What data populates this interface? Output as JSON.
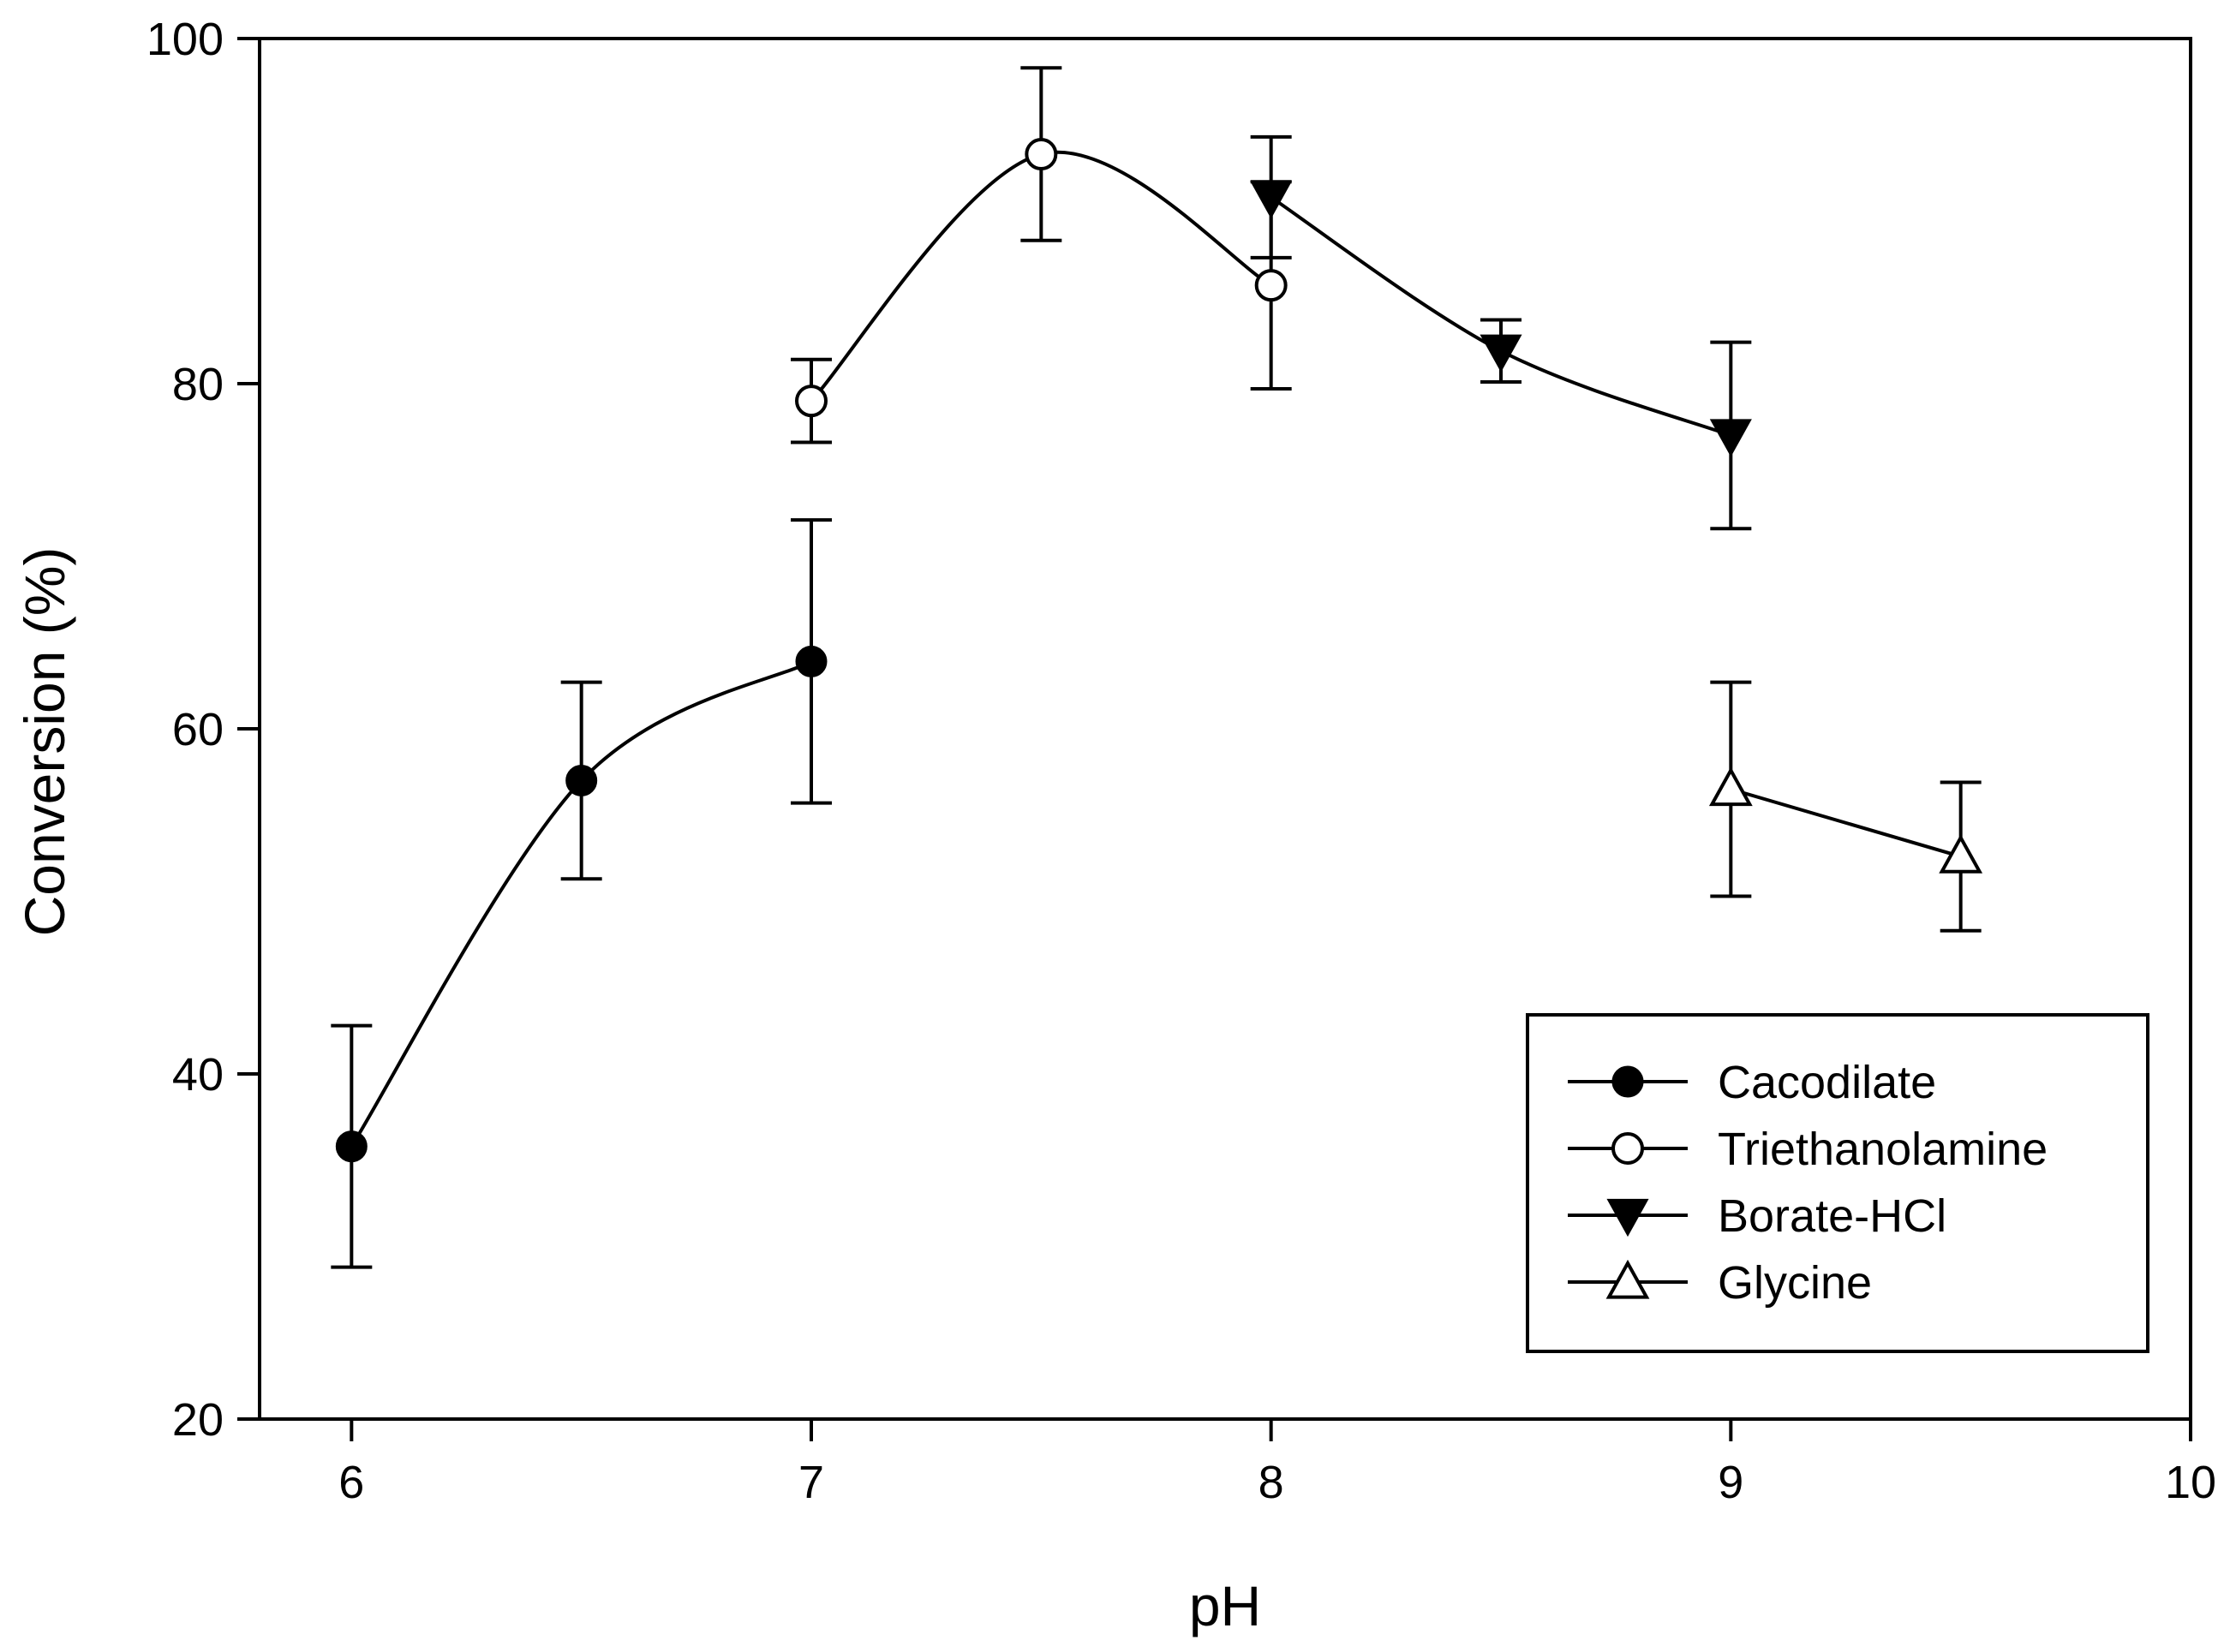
{
  "chart_data": {
    "type": "line",
    "title": "",
    "xlabel": "pH",
    "ylabel": "Conversion (%)",
    "xlim": [
      5.8,
      10
    ],
    "ylim": [
      20,
      100
    ],
    "xticks": [
      6,
      7,
      8,
      9,
      10
    ],
    "yticks": [
      20,
      40,
      60,
      80,
      100
    ],
    "grid": false,
    "legend_position": "bottom-right",
    "series": [
      {
        "name": "Cacodilate",
        "marker": "filled-circle",
        "x": [
          6,
          6.5,
          7
        ],
        "y": [
          35.8,
          57.0,
          63.9
        ],
        "err": [
          7.0,
          5.7,
          8.2
        ]
      },
      {
        "name": "Triethanolamine",
        "marker": "open-circle",
        "x": [
          7,
          7.5,
          8
        ],
        "y": [
          79.0,
          93.3,
          85.7
        ],
        "err": [
          2.4,
          5.0,
          6.0
        ]
      },
      {
        "name": "Borate-HCl",
        "marker": "filled-triangle-down",
        "x": [
          8,
          8.5,
          9
        ],
        "y": [
          90.8,
          81.9,
          77.0
        ],
        "err": [
          3.5,
          1.8,
          5.4
        ]
      },
      {
        "name": "Glycine",
        "marker": "open-triangle-up",
        "x": [
          9,
          9.5
        ],
        "y": [
          56.5,
          52.6
        ],
        "err": [
          6.2,
          4.3
        ]
      }
    ]
  }
}
